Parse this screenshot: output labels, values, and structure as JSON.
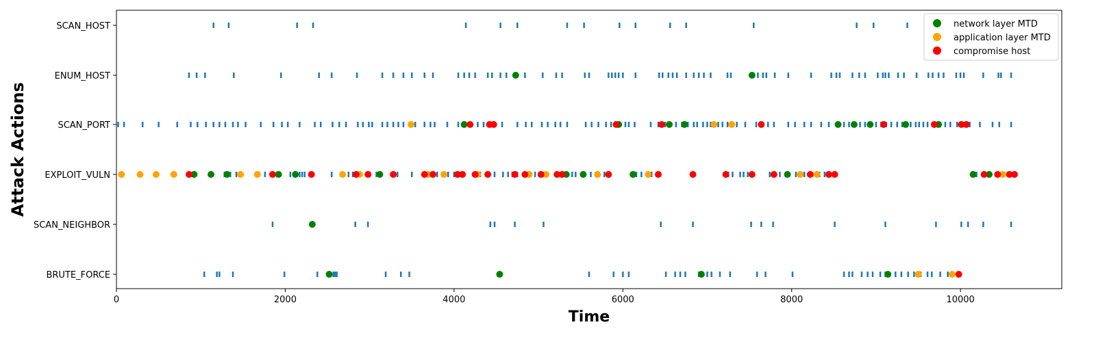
{
  "chart_data": {
    "type": "scatter",
    "xlabel": "Time",
    "ylabel": "Attack Actions",
    "xlim": [
      0,
      11200
    ],
    "x_ticks": [
      0,
      2000,
      4000,
      6000,
      8000,
      10000
    ],
    "x_tick_labels": [
      "0",
      "2000",
      "4000",
      "6000",
      "8000",
      "10000"
    ],
    "categories": [
      "BRUTE_FORCE",
      "SCAN_NEIGHBOR",
      "EXPLOIT_VULN",
      "SCAN_PORT",
      "ENUM_HOST",
      "SCAN_HOST"
    ],
    "grid": false,
    "legend_position": "top-right",
    "action_color": "#1f77b4",
    "actions": [
      {
        "category": "SCAN_HOST",
        "x": [
          1150,
          1330,
          2140,
          2330,
          4140,
          4550,
          4750,
          5340,
          5540,
          5960,
          6150,
          6560,
          6750,
          7550,
          8770,
          8970,
          9370
        ]
      },
      {
        "category": "ENUM_HOST",
        "x": [
          860,
          950,
          1050,
          1390,
          1950,
          2400,
          2550,
          2850,
          3150,
          3280,
          3400,
          3500,
          3650,
          3750,
          4050,
          4120,
          4180,
          4250,
          4400,
          4450,
          4550,
          4620,
          4840,
          5050,
          5210,
          5280,
          5550,
          5600,
          5830,
          5870,
          5910,
          5950,
          6000,
          6150,
          6430,
          6470,
          6540,
          6590,
          6640,
          6750,
          6840,
          6900,
          6960,
          7040,
          7240,
          7280,
          7550,
          7600,
          7660,
          7700,
          7800,
          7960,
          8230,
          8470,
          8530,
          8570,
          8720,
          8800,
          8870,
          9020,
          9080,
          9110,
          9150,
          9260,
          9330,
          9480,
          9620,
          9670,
          9740,
          9800,
          9950,
          10000,
          10040,
          10270,
          10450,
          10480,
          10600
        ]
      },
      {
        "category": "SCAN_PORT",
        "x": [
          20,
          90,
          310,
          500,
          720,
          880,
          960,
          1060,
          1150,
          1220,
          1290,
          1380,
          1440,
          1530,
          1710,
          1860,
          1960,
          2030,
          2170,
          2350,
          2420,
          2560,
          2640,
          2720,
          2860,
          2920,
          2990,
          3030,
          3150,
          3210,
          3280,
          3340,
          3400,
          3480,
          3540,
          3650,
          3720,
          3770,
          3920,
          4050,
          4120,
          4200,
          4280,
          4350,
          4470,
          4570,
          4750,
          4850,
          4920,
          5040,
          5110,
          5200,
          5260,
          5340,
          5560,
          5630,
          5710,
          5800,
          5860,
          5960,
          6030,
          6070,
          6140,
          6330,
          6420,
          6500,
          6630,
          6700,
          6770,
          6840,
          6880,
          6950,
          7000,
          7040,
          7130,
          7180,
          7240,
          7350,
          7450,
          7580,
          7640,
          7720,
          7790,
          7960,
          8040,
          8150,
          8230,
          8350,
          8440,
          8620,
          8680,
          8750,
          8810,
          8870,
          8930,
          9000,
          9060,
          9120,
          9180,
          9250,
          9310,
          9370,
          9410,
          9470,
          9510,
          9560,
          9610,
          9670,
          9700,
          9760,
          9820,
          9880,
          9960,
          10040,
          10110,
          10230,
          10380,
          10460,
          10600
        ]
      },
      {
        "category": "EXPLOIT_VULN",
        "x": [
          60,
          900,
          1110,
          1280,
          1350,
          1420,
          1470,
          1690,
          1760,
          2060,
          2170,
          2200,
          2230,
          2310,
          2550,
          2660,
          2750,
          2800,
          2850,
          3000,
          3080,
          3130,
          3330,
          3500,
          3640,
          3800,
          3860,
          3930,
          4000,
          4070,
          4260,
          4310,
          4380,
          4480,
          4580,
          4640,
          4690,
          4750,
          4830,
          4880,
          4960,
          5010,
          5060,
          5220,
          5280,
          5300,
          5400,
          5440,
          5550,
          5620,
          5680,
          5700,
          5780,
          5820,
          6120,
          6160,
          6220,
          6340,
          6400,
          6820,
          7250,
          7300,
          7390,
          7430,
          7480,
          7530,
          7740,
          7860,
          7930,
          8050,
          8150,
          8240,
          8330,
          8390,
          10190,
          10420,
          10520
        ]
      },
      {
        "category": "SCAN_NEIGHBOR",
        "x": [
          1850,
          2830,
          2980,
          4430,
          4480,
          4720,
          5060,
          6450,
          6830,
          7520,
          7640,
          7780,
          8510,
          9110,
          9710,
          10010,
          10090,
          10270,
          10600
        ]
      },
      {
        "category": "BRUTE_FORCE",
        "x": [
          1040,
          1190,
          1220,
          1380,
          1990,
          2380,
          2570,
          2590,
          2610,
          3190,
          3370,
          3470,
          5600,
          5890,
          6000,
          6070,
          6510,
          6620,
          6680,
          6740,
          6900,
          6940,
          7000,
          7050,
          7150,
          7270,
          7590,
          7690,
          8010,
          8620,
          8680,
          8720,
          8830,
          8900,
          8960,
          9050,
          9110,
          9230,
          9300,
          9380,
          9450,
          9530,
          9610,
          9660,
          9760,
          9850,
          9900
        ]
      }
    ],
    "series": [
      {
        "name": "network layer MTD",
        "color": "#008000",
        "points": [
          {
            "x": 920,
            "y": "EXPLOIT_VULN"
          },
          {
            "x": 1120,
            "y": "EXPLOIT_VULN"
          },
          {
            "x": 1310,
            "y": "EXPLOIT_VULN"
          },
          {
            "x": 1920,
            "y": "EXPLOIT_VULN"
          },
          {
            "x": 2120,
            "y": "EXPLOIT_VULN"
          },
          {
            "x": 3120,
            "y": "EXPLOIT_VULN"
          },
          {
            "x": 5530,
            "y": "EXPLOIT_VULN"
          },
          {
            "x": 6120,
            "y": "EXPLOIT_VULN"
          },
          {
            "x": 7950,
            "y": "EXPLOIT_VULN"
          },
          {
            "x": 10150,
            "y": "EXPLOIT_VULN"
          },
          {
            "x": 10340,
            "y": "EXPLOIT_VULN"
          },
          {
            "x": 5330,
            "y": "EXPLOIT_VULN"
          },
          {
            "x": 4120,
            "y": "SCAN_PORT"
          },
          {
            "x": 5950,
            "y": "SCAN_PORT"
          },
          {
            "x": 6550,
            "y": "SCAN_PORT"
          },
          {
            "x": 6730,
            "y": "SCAN_PORT"
          },
          {
            "x": 8550,
            "y": "SCAN_PORT"
          },
          {
            "x": 8740,
            "y": "SCAN_PORT"
          },
          {
            "x": 8930,
            "y": "SCAN_PORT"
          },
          {
            "x": 9350,
            "y": "SCAN_PORT"
          },
          {
            "x": 9740,
            "y": "SCAN_PORT"
          },
          {
            "x": 4730,
            "y": "ENUM_HOST"
          },
          {
            "x": 7530,
            "y": "ENUM_HOST"
          },
          {
            "x": 2320,
            "y": "SCAN_NEIGHBOR"
          },
          {
            "x": 2520,
            "y": "BRUTE_FORCE"
          },
          {
            "x": 4540,
            "y": "BRUTE_FORCE"
          },
          {
            "x": 6930,
            "y": "BRUTE_FORCE"
          },
          {
            "x": 9140,
            "y": "BRUTE_FORCE"
          }
        ]
      },
      {
        "name": "application layer MTD",
        "color": "#ffa500",
        "points": [
          {
            "x": 60,
            "y": "EXPLOIT_VULN"
          },
          {
            "x": 280,
            "y": "EXPLOIT_VULN"
          },
          {
            "x": 470,
            "y": "EXPLOIT_VULN"
          },
          {
            "x": 680,
            "y": "EXPLOIT_VULN"
          },
          {
            "x": 1470,
            "y": "EXPLOIT_VULN"
          },
          {
            "x": 1670,
            "y": "EXPLOIT_VULN"
          },
          {
            "x": 2680,
            "y": "EXPLOIT_VULN"
          },
          {
            "x": 2880,
            "y": "EXPLOIT_VULN"
          },
          {
            "x": 3690,
            "y": "EXPLOIT_VULN"
          },
          {
            "x": 3880,
            "y": "EXPLOIT_VULN"
          },
          {
            "x": 4280,
            "y": "EXPLOIT_VULN"
          },
          {
            "x": 4890,
            "y": "EXPLOIT_VULN"
          },
          {
            "x": 5090,
            "y": "EXPLOIT_VULN"
          },
          {
            "x": 5700,
            "y": "EXPLOIT_VULN"
          },
          {
            "x": 6300,
            "y": "EXPLOIT_VULN"
          },
          {
            "x": 8100,
            "y": "EXPLOIT_VULN"
          },
          {
            "x": 8300,
            "y": "EXPLOIT_VULN"
          },
          {
            "x": 10500,
            "y": "EXPLOIT_VULN"
          },
          {
            "x": 3490,
            "y": "SCAN_PORT"
          },
          {
            "x": 7080,
            "y": "SCAN_PORT"
          },
          {
            "x": 7290,
            "y": "SCAN_PORT"
          },
          {
            "x": 9500,
            "y": "BRUTE_FORCE"
          },
          {
            "x": 9900,
            "y": "BRUTE_FORCE"
          }
        ]
      },
      {
        "name": "compromise host",
        "color": "#ff0000",
        "points": [
          {
            "x": 860,
            "y": "EXPLOIT_VULN"
          },
          {
            "x": 1850,
            "y": "EXPLOIT_VULN"
          },
          {
            "x": 2310,
            "y": "EXPLOIT_VULN"
          },
          {
            "x": 2840,
            "y": "EXPLOIT_VULN"
          },
          {
            "x": 2980,
            "y": "EXPLOIT_VULN"
          },
          {
            "x": 3280,
            "y": "EXPLOIT_VULN"
          },
          {
            "x": 3650,
            "y": "EXPLOIT_VULN"
          },
          {
            "x": 3750,
            "y": "EXPLOIT_VULN"
          },
          {
            "x": 4040,
            "y": "EXPLOIT_VULN"
          },
          {
            "x": 4100,
            "y": "EXPLOIT_VULN"
          },
          {
            "x": 4250,
            "y": "EXPLOIT_VULN"
          },
          {
            "x": 4400,
            "y": "EXPLOIT_VULN"
          },
          {
            "x": 4720,
            "y": "EXPLOIT_VULN"
          },
          {
            "x": 4840,
            "y": "EXPLOIT_VULN"
          },
          {
            "x": 5030,
            "y": "EXPLOIT_VULN"
          },
          {
            "x": 5220,
            "y": "EXPLOIT_VULN"
          },
          {
            "x": 5280,
            "y": "EXPLOIT_VULN"
          },
          {
            "x": 5830,
            "y": "EXPLOIT_VULN"
          },
          {
            "x": 6420,
            "y": "EXPLOIT_VULN"
          },
          {
            "x": 6830,
            "y": "EXPLOIT_VULN"
          },
          {
            "x": 7220,
            "y": "EXPLOIT_VULN"
          },
          {
            "x": 7530,
            "y": "EXPLOIT_VULN"
          },
          {
            "x": 7790,
            "y": "EXPLOIT_VULN"
          },
          {
            "x": 8220,
            "y": "EXPLOIT_VULN"
          },
          {
            "x": 8440,
            "y": "EXPLOIT_VULN"
          },
          {
            "x": 8510,
            "y": "EXPLOIT_VULN"
          },
          {
            "x": 10280,
            "y": "EXPLOIT_VULN"
          },
          {
            "x": 10440,
            "y": "EXPLOIT_VULN"
          },
          {
            "x": 10580,
            "y": "EXPLOIT_VULN"
          },
          {
            "x": 10640,
            "y": "EXPLOIT_VULN"
          },
          {
            "x": 4190,
            "y": "SCAN_PORT"
          },
          {
            "x": 4420,
            "y": "SCAN_PORT"
          },
          {
            "x": 4470,
            "y": "SCAN_PORT"
          },
          {
            "x": 5920,
            "y": "SCAN_PORT"
          },
          {
            "x": 6460,
            "y": "SCAN_PORT"
          },
          {
            "x": 7640,
            "y": "SCAN_PORT"
          },
          {
            "x": 9090,
            "y": "SCAN_PORT"
          },
          {
            "x": 9690,
            "y": "SCAN_PORT"
          },
          {
            "x": 10010,
            "y": "SCAN_PORT"
          },
          {
            "x": 10070,
            "y": "SCAN_PORT"
          },
          {
            "x": 9980,
            "y": "BRUTE_FORCE"
          }
        ]
      }
    ]
  }
}
